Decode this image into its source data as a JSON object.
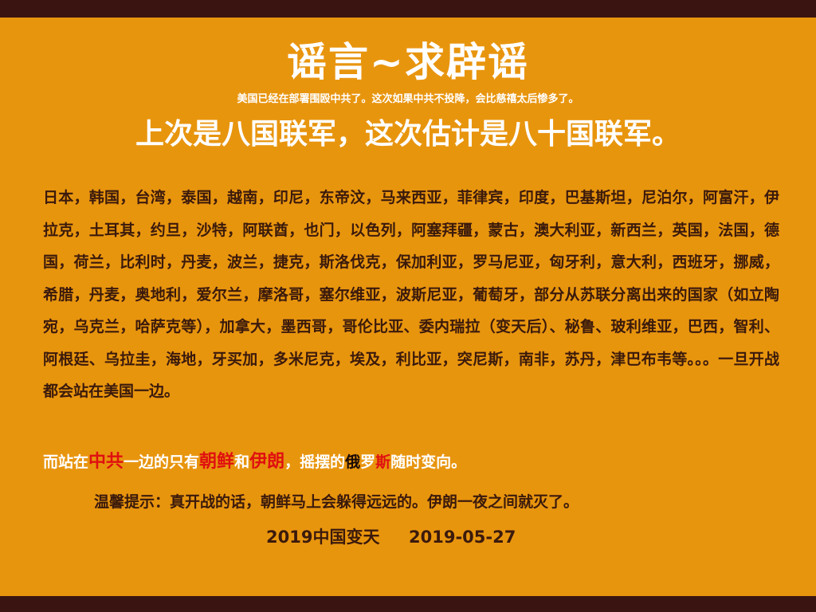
{
  "title": "谣言~求辟谣",
  "subtitle": "美国已经在部署围殴中共了。这次如果中共不投降，会比慈禧太后惨多了。",
  "headline": "上次是八国联军，这次估计是八十国联军。",
  "body": "日本，韩国，台湾，泰国，越南，印尼，东帝汶，马来西亚，菲律宾，印度，巴基斯坦，尼泊尔，阿富汗，伊拉克，土耳其，约旦，沙特，阿联酋，也门，以色列，阿塞拜疆，蒙古，澳大利亚，新西兰，英国，法国，德国，荷兰，比利时，丹麦，波兰，捷克，斯洛伐克，保加利亚，罗马尼亚，匈牙利，意大利，西班牙，挪威，希腊，丹麦，奥地利，爱尔兰，摩洛哥，塞尔维亚，波斯尼亚，葡萄牙，部分从苏联分离出来的国家（如立陶宛，乌克兰，哈萨克等），加拿大，墨西哥，哥伦比亚、委内瑞拉（变天后）、秘鲁、玻利维亚，巴西，智利、阿根廷、乌拉圭，海地，牙买加，多米尼克，埃及，利比亚，突尼斯，南非，苏丹，津巴布韦等。。。一旦开战都会站在美国一边。",
  "allies": {
    "p1": "而站在",
    "p2": "中共",
    "p3": "一边的只有",
    "p4": "朝鲜",
    "p5": "和",
    "p6": "伊朗",
    "p7": "，摇摆的",
    "p8": "俄",
    "p9": "罗",
    "p10": "斯",
    "p11": "随时变向。"
  },
  "tip": "温馨提示：真开战的话，朝鲜马上会躲得远远的。伊朗一夜之间就灭了。",
  "footer": {
    "left": "2019中国变天",
    "right": "2019-05-27"
  }
}
